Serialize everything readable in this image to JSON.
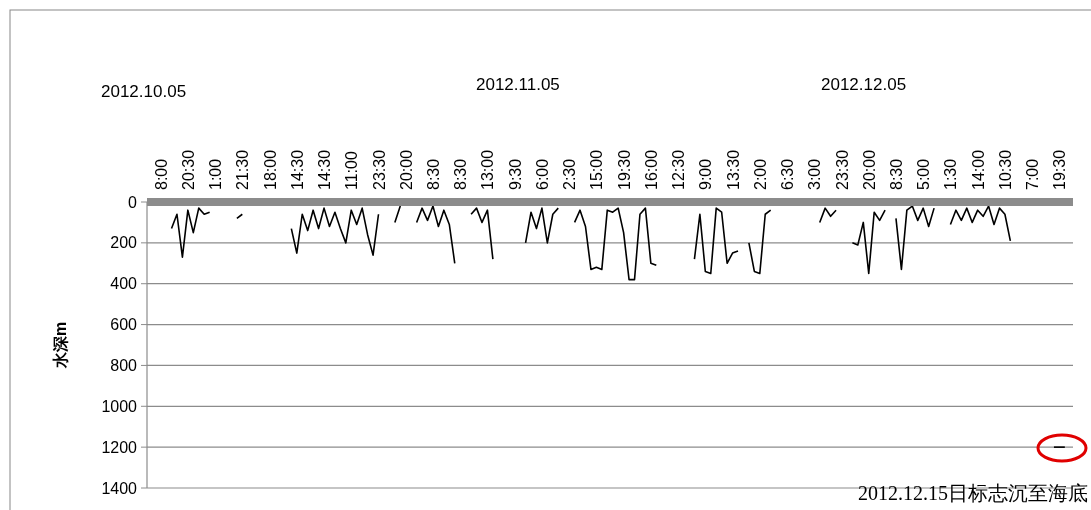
{
  "chart_data": {
    "type": "line",
    "ylabel": "水深m",
    "categories": [
      null,
      null,
      "8:00",
      null,
      null,
      null,
      null,
      "20:30",
      null,
      null,
      null,
      null,
      "1:00",
      null,
      null,
      null,
      null,
      "21:30",
      null,
      null,
      null,
      null,
      "18:00",
      null,
      null,
      null,
      null,
      "14:30",
      null,
      null,
      null,
      null,
      "14:30",
      null,
      null,
      null,
      null,
      "11:00",
      null,
      null,
      null,
      null,
      "23:30",
      null,
      null,
      null,
      null,
      "20:00",
      null,
      null,
      null,
      null,
      "8:30",
      null,
      null,
      null,
      null,
      "8:30",
      null,
      null,
      null,
      null,
      "13:00",
      null,
      null,
      null,
      null,
      "9:30",
      null,
      null,
      null,
      null,
      "6:00",
      null,
      null,
      null,
      null,
      "2:30",
      null,
      null,
      null,
      null,
      "15:00",
      null,
      null,
      null,
      null,
      "19:30",
      null,
      null,
      null,
      null,
      "16:00",
      null,
      null,
      null,
      null,
      "12:30",
      null,
      null,
      null,
      null,
      "9:00",
      null,
      null,
      null,
      null,
      "13:30",
      null,
      null,
      null,
      null,
      "2:00",
      null,
      null,
      null,
      null,
      "6:30",
      null,
      null,
      null,
      null,
      "3:00",
      null,
      null,
      null,
      null,
      "23:30",
      null,
      null,
      null,
      null,
      "20:00",
      null,
      null,
      null,
      null,
      "8:30",
      null,
      null,
      null,
      null,
      "5:00",
      null,
      null,
      null,
      null,
      "1:30",
      null,
      null,
      null,
      null,
      "14:00",
      null,
      null,
      null,
      null,
      "10:30",
      null,
      null,
      null,
      null,
      "7:00",
      null,
      null,
      null,
      null,
      "19:30",
      null,
      null
    ],
    "series": [
      {
        "color": "#000000",
        "values": [
          null,
          null,
          null,
          null,
          130,
          60,
          270,
          40,
          150,
          30,
          60,
          50,
          null,
          null,
          null,
          null,
          80,
          60,
          null,
          null,
          null,
          null,
          null,
          null,
          null,
          null,
          130,
          250,
          60,
          140,
          40,
          130,
          30,
          120,
          50,
          130,
          200,
          40,
          110,
          30,
          160,
          260,
          60,
          null,
          null,
          100,
          20,
          null,
          null,
          100,
          30,
          90,
          20,
          120,
          40,
          110,
          300,
          null,
          null,
          60,
          30,
          100,
          40,
          280,
          null,
          null,
          null,
          null,
          null,
          200,
          50,
          130,
          30,
          200,
          60,
          30,
          null,
          null,
          100,
          40,
          120,
          330,
          320,
          330,
          40,
          50,
          30,
          150,
          380,
          380,
          60,
          30,
          300,
          310,
          null,
          null,
          null,
          null,
          null,
          null,
          280,
          60,
          340,
          350,
          30,
          50,
          300,
          250,
          240,
          null,
          200,
          340,
          350,
          60,
          40,
          null,
          null,
          null,
          null,
          null,
          null,
          null,
          null,
          100,
          30,
          70,
          40,
          null,
          null,
          200,
          210,
          100,
          350,
          50,
          90,
          40,
          null,
          80,
          330,
          40,
          20,
          90,
          30,
          120,
          30,
          null,
          null,
          110,
          40,
          90,
          30,
          100,
          40,
          70,
          20,
          110,
          30,
          60,
          190,
          null,
          null,
          null,
          null,
          null,
          null,
          null,
          null,
          null,
          null,
          null
        ]
      },
      {
        "color": "#000000",
        "values": [
          null,
          null,
          null,
          null,
          null,
          null,
          null,
          null,
          null,
          null,
          null,
          null,
          null,
          null,
          null,
          null,
          null,
          null,
          null,
          null,
          null,
          null,
          null,
          null,
          null,
          null,
          null,
          null,
          null,
          null,
          null,
          null,
          null,
          null,
          null,
          null,
          null,
          null,
          null,
          null,
          null,
          null,
          null,
          null,
          null,
          null,
          null,
          null,
          null,
          null,
          null,
          null,
          null,
          null,
          null,
          null,
          null,
          null,
          null,
          null,
          null,
          null,
          null,
          null,
          null,
          null,
          null,
          null,
          null,
          null,
          null,
          null,
          null,
          null,
          null,
          null,
          null,
          null,
          null,
          null,
          null,
          null,
          null,
          null,
          null,
          null,
          null,
          null,
          null,
          null,
          null,
          null,
          null,
          null,
          null,
          null,
          null,
          null,
          null,
          null,
          null,
          null,
          null,
          null,
          null,
          null,
          null,
          null,
          null,
          null,
          null,
          null,
          null,
          null,
          null,
          null,
          null,
          null,
          null,
          null,
          null,
          null,
          null,
          null,
          null,
          null,
          null,
          null,
          null,
          null,
          null,
          null,
          null,
          null,
          null,
          null,
          null,
          null,
          null,
          null,
          null,
          null,
          null,
          null,
          null,
          null,
          null,
          null,
          null,
          null,
          null,
          null,
          null,
          null,
          null,
          null,
          null,
          null,
          null,
          null,
          null,
          null,
          null,
          null,
          null,
          null,
          1200,
          1200,
          1200,
          null
        ]
      }
    ],
    "ylim": [
      1400,
      0
    ],
    "yticks": [
      0,
      200,
      400,
      600,
      800,
      1000,
      1200,
      1400
    ],
    "grid": "y",
    "annotations": [
      "2012.10.05",
      "2012.11.05",
      "2012.12.05",
      "2012.12.15日标志沉至海底"
    ]
  }
}
